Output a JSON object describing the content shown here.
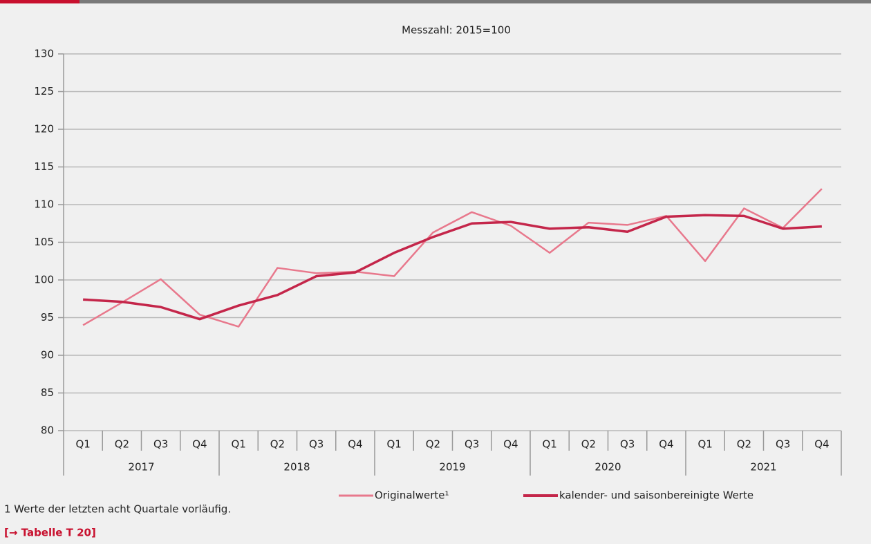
{
  "chart_data": {
    "type": "line",
    "subtitle": "Messzahl: 2015=100",
    "categories": [
      "Q1",
      "Q2",
      "Q3",
      "Q4",
      "Q1",
      "Q2",
      "Q3",
      "Q4",
      "Q1",
      "Q2",
      "Q3",
      "Q4",
      "Q1",
      "Q2",
      "Q3",
      "Q4",
      "Q1",
      "Q2",
      "Q3",
      "Q4"
    ],
    "years": [
      "2017",
      "2018",
      "2019",
      "2020",
      "2021"
    ],
    "series": [
      {
        "name": "Originalwerte¹",
        "color": "#e8788c",
        "values": [
          94.0,
          97.0,
          100.1,
          95.4,
          93.8,
          101.6,
          100.9,
          101.1,
          100.5,
          106.3,
          109.0,
          107.2,
          103.6,
          107.6,
          107.3,
          108.5,
          102.5,
          109.5,
          106.9,
          112.1
        ]
      },
      {
        "name": "kalender- und saisonbereinigte Werte",
        "color": "#c4264a",
        "values": [
          97.4,
          97.1,
          96.4,
          94.8,
          96.6,
          98.0,
          100.5,
          101.0,
          103.6,
          105.7,
          107.5,
          107.7,
          106.8,
          107.0,
          106.4,
          108.4,
          108.6,
          108.5,
          106.8,
          107.1
        ]
      }
    ],
    "ylim": [
      80,
      130
    ],
    "yticks": [
      80,
      85,
      90,
      95,
      100,
      105,
      110,
      115,
      120,
      125,
      130
    ],
    "grid": true,
    "footnote": "1 Werte der letzten acht Quartale vorläufig.",
    "link": "[→ Tabelle T 20]"
  }
}
